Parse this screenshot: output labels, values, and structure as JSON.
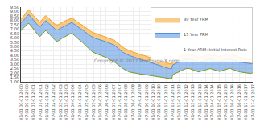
{
  "chart_data": {
    "type": "area",
    "annotations": [
      "Copyright © 2017 Mortgage-X.com"
    ],
    "grid": true,
    "legend": "upper right",
    "ylim": [
      1.0,
      9.5
    ],
    "yticks": [
      {
        "value": 1.0,
        "label": "1.00"
      },
      {
        "value": 1.5,
        "label": "1.50"
      },
      {
        "value": 2.0,
        "label": "2.00"
      },
      {
        "value": 2.5,
        "label": "2.50"
      },
      {
        "value": 3.0,
        "label": "3.00"
      },
      {
        "value": 3.5,
        "label": "3.50"
      },
      {
        "value": 4.0,
        "label": "4.00"
      },
      {
        "value": 4.5,
        "label": "4.50"
      },
      {
        "value": 5.0,
        "label": "5.00"
      },
      {
        "value": 5.5,
        "label": "5.50"
      },
      {
        "value": 6.0,
        "label": "6.00"
      },
      {
        "value": 6.5,
        "label": "6.50"
      },
      {
        "value": 7.0,
        "label": "7.00"
      },
      {
        "value": 7.5,
        "label": "7.50"
      },
      {
        "value": 8.0,
        "label": "8.00"
      },
      {
        "value": 8.5,
        "label": "8.50"
      },
      {
        "value": 9.0,
        "label": "9.00"
      },
      {
        "value": 9.5,
        "label": "9.50"
      }
    ],
    "categories": [
      "01-01\n00-01\n2000",
      null,
      null,
      null,
      null,
      null,
      "07-01\n00-01\n2000",
      null,
      null,
      null,
      null,
      null,
      "01-01\n01-01\n2001",
      null,
      null,
      null,
      null,
      null,
      null,
      "07-01\n01-01\n2001",
      null,
      null,
      null,
      null,
      null,
      "01-01\n02-01\n2002",
      null,
      null,
      null,
      null,
      null,
      "07-01\n02-01\n2002",
      null,
      null,
      null,
      null,
      null,
      null,
      "01-01\n03-01\n2003",
      null,
      null,
      null,
      null,
      null,
      "07-01\n03-01\n2003",
      null,
      null,
      null,
      null,
      null,
      "01-01\n04-01\n2004",
      null,
      null,
      null,
      null,
      null,
      null,
      "07-01\n04-01\n2004",
      null,
      null,
      null,
      null,
      null,
      "01-01\n05-01\n2005",
      null,
      null,
      null,
      null,
      null,
      null,
      "07-01\n05-01\n2005",
      null,
      null,
      null,
      null,
      null,
      "01-01\n06-01\n2006",
      null,
      null,
      null,
      null,
      null,
      "07-01\n06-01\n2006",
      null,
      null,
      null,
      null,
      null,
      null,
      "01-01\n07-01\n2007",
      null,
      null,
      null,
      null,
      null,
      "07-01\n07-01\n2007",
      null,
      null,
      null,
      null,
      null,
      "01-01\n08-01\n2008",
      null,
      null,
      null,
      null,
      null,
      null,
      "07-01\n08-01\n2008",
      null,
      null,
      null,
      null,
      null,
      "01-01\n09-01\n2009",
      null,
      null,
      null,
      null,
      null,
      null,
      "07-01\n09-01\n2009",
      null,
      null,
      null,
      null,
      null,
      "01-01\n10-01\n2010",
      null,
      null,
      null,
      null,
      null,
      "07-01\n10-01\n2010",
      null,
      null,
      null,
      null,
      null,
      null,
      "01-01\n11-01\n2011",
      null,
      null,
      null,
      null,
      null,
      "07-01\n11-01\n2011",
      null,
      null,
      null,
      null,
      null,
      "01-01\n12-01\n2012",
      null,
      null,
      null,
      null,
      null,
      null,
      "07-01\n12-01\n2012",
      null,
      null,
      null,
      null,
      null,
      "01-01\n13-01\n2013",
      null,
      null,
      null,
      null,
      null,
      null,
      "07-01\n13-01\n2013",
      null,
      null,
      null,
      null,
      null,
      "01-01\n14-01\n2014",
      null,
      null,
      null,
      null,
      null,
      "07-01\n14-01\n2014",
      null,
      null,
      null,
      null,
      null,
      null,
      "01-01\n15-01\n2015",
      null,
      null,
      null,
      null,
      null,
      "07-01\n15-01\n2015",
      null,
      null,
      null,
      null,
      null,
      "01-01\n16-01\n2016",
      null,
      null,
      null,
      null,
      null,
      null,
      "07-01\n16-01\n2016",
      null,
      null,
      null,
      null,
      null,
      "01-01\n17-01\n2017",
      null,
      null,
      null,
      null,
      null,
      null,
      "07-01\n17-01\n2017"
    ],
    "series": [
      {
        "name": "30 Year FRM",
        "color": "#f5a020",
        "values": [
          8.15,
          8.25,
          8.4,
          8.55,
          8.72,
          8.88,
          9.1,
          9.2,
          9.18,
          9.05,
          8.88,
          8.7,
          8.55,
          8.42,
          8.28,
          8.12,
          8.0,
          7.9,
          7.82,
          7.88,
          8.02,
          8.18,
          8.35,
          8.45,
          8.52,
          8.45,
          8.32,
          8.2,
          8.08,
          7.95,
          7.82,
          7.72,
          7.62,
          7.56,
          7.5,
          7.46,
          7.52,
          7.6,
          7.68,
          7.72,
          7.78,
          7.85,
          7.9,
          7.95,
          7.98,
          8.05,
          8.1,
          8.18,
          8.22,
          8.25,
          8.2,
          8.08,
          8.02,
          7.92,
          7.82,
          7.72,
          7.65,
          7.58,
          7.52,
          7.46,
          7.4,
          7.3,
          7.2,
          7.1,
          7.0,
          6.92,
          6.84,
          6.76,
          6.68,
          6.62,
          6.56,
          6.52,
          6.48,
          6.45,
          6.42,
          6.38,
          6.34,
          6.3,
          6.26,
          6.22,
          6.18,
          6.14,
          6.1,
          6.06,
          6.02,
          5.98,
          5.94,
          5.9,
          5.86,
          5.8,
          5.72,
          5.62,
          5.52,
          5.4,
          5.28,
          5.18,
          5.08,
          5.0,
          4.92,
          4.85,
          4.78,
          4.72,
          4.66,
          4.6,
          4.55,
          4.5,
          4.46,
          4.42,
          4.38,
          4.35,
          4.32,
          4.28,
          4.24,
          4.2,
          4.16,
          4.12,
          4.08,
          4.04,
          4.0,
          3.96,
          3.92,
          3.88,
          3.84,
          3.8,
          3.76,
          3.72,
          3.68,
          3.64,
          3.6,
          3.56,
          3.52,
          3.48,
          3.44,
          3.4,
          3.36,
          3.32,
          3.28,
          3.24,
          3.2,
          3.16,
          3.12,
          3.1,
          3.08,
          3.06,
          3.05,
          3.04,
          3.48,
          3.55,
          3.62,
          3.68,
          3.74,
          3.8,
          3.85,
          3.9,
          3.95,
          4.0,
          4.05,
          4.08,
          4.12,
          4.16,
          4.18,
          4.2,
          4.16,
          4.12,
          4.08,
          4.04,
          4.0,
          3.96,
          3.9,
          3.85,
          3.82,
          3.78,
          3.82,
          3.86,
          3.9,
          3.94,
          3.98,
          4.02,
          4.06,
          4.1,
          4.14,
          4.18,
          4.16,
          4.12,
          4.08,
          4.04,
          4.0,
          3.96,
          3.92,
          3.88,
          3.86,
          3.84,
          3.88,
          3.92,
          3.96,
          4.0,
          4.04,
          4.08,
          4.12,
          4.16,
          4.18,
          4.2,
          4.15,
          4.1,
          4.05,
          4.0,
          3.96,
          3.92,
          3.88,
          3.84,
          3.82,
          3.8,
          3.78,
          3.76,
          3.74,
          3.72,
          3.7,
          3.68,
          3.65,
          3.62,
          3.6,
          3.58,
          3.62,
          3.68
        ]
      },
      {
        "name": "15 Year FRM",
        "color": "#5090e0",
        "values": [
          7.7,
          7.8,
          7.95,
          8.05,
          8.2,
          8.35,
          8.55,
          8.62,
          8.6,
          8.45,
          8.3,
          8.12,
          7.98,
          7.85,
          7.72,
          7.58,
          7.45,
          7.35,
          7.28,
          7.34,
          7.48,
          7.62,
          7.78,
          7.88,
          7.95,
          7.88,
          7.75,
          7.62,
          7.5,
          7.38,
          7.25,
          7.15,
          7.05,
          6.98,
          6.92,
          6.88,
          6.95,
          7.02,
          7.1,
          7.14,
          7.2,
          7.28,
          7.34,
          7.4,
          7.44,
          7.52,
          7.58,
          7.66,
          7.7,
          7.74,
          7.68,
          7.56,
          7.5,
          7.4,
          7.3,
          7.2,
          7.12,
          7.05,
          6.98,
          6.92,
          6.86,
          6.75,
          6.65,
          6.55,
          6.45,
          6.37,
          6.29,
          6.21,
          6.14,
          6.07,
          6.01,
          5.96,
          5.92,
          5.89,
          5.86,
          5.82,
          5.78,
          5.74,
          5.7,
          5.66,
          5.62,
          5.58,
          5.54,
          5.5,
          5.46,
          5.42,
          5.38,
          5.34,
          5.3,
          5.24,
          5.16,
          5.06,
          4.95,
          4.83,
          4.72,
          4.62,
          4.52,
          4.44,
          4.36,
          4.3,
          4.23,
          4.17,
          4.11,
          4.05,
          4.0,
          3.95,
          3.91,
          3.87,
          3.83,
          3.8,
          3.76,
          3.72,
          3.68,
          3.64,
          3.6,
          3.56,
          3.52,
          3.48,
          3.44,
          3.4,
          3.36,
          3.32,
          3.28,
          3.24,
          3.2,
          3.16,
          3.12,
          3.08,
          3.04,
          3.0,
          2.96,
          2.92,
          2.88,
          2.84,
          2.8,
          2.76,
          2.72,
          2.68,
          2.64,
          2.6,
          2.56,
          2.54,
          2.52,
          2.5,
          2.49,
          2.48,
          2.92,
          2.98,
          3.04,
          3.1,
          3.16,
          3.22,
          3.28,
          3.34,
          3.4,
          3.46,
          3.5,
          3.54,
          3.58,
          3.62,
          3.64,
          3.66,
          3.62,
          3.58,
          3.54,
          3.5,
          3.46,
          3.42,
          3.36,
          3.3,
          3.27,
          3.23,
          3.26,
          3.3,
          3.34,
          3.38,
          3.42,
          3.46,
          3.5,
          3.54,
          3.58,
          3.62,
          3.6,
          3.56,
          3.52,
          3.48,
          3.44,
          3.4,
          3.36,
          3.32,
          3.3,
          3.28,
          3.32,
          3.36,
          3.4,
          3.44,
          3.48,
          3.52,
          3.56,
          3.6,
          3.62,
          3.64,
          3.58,
          3.53,
          3.48,
          3.43,
          3.38,
          3.34,
          3.3,
          3.26,
          3.24,
          3.22,
          3.2,
          3.18,
          3.16,
          3.14,
          3.12,
          3.1,
          3.08,
          3.05,
          3.03,
          3.01,
          3.05,
          3.1
        ]
      },
      {
        "name": "1 Year ARM: Initial Interest Rate",
        "color": "#7a9b20",
        "values": [
          6.8,
          6.9,
          7.05,
          7.18,
          7.3,
          7.42,
          7.58,
          7.64,
          7.62,
          7.48,
          7.32,
          7.14,
          7.0,
          6.88,
          6.74,
          6.55,
          6.38,
          6.24,
          6.15,
          6.22,
          6.36,
          6.52,
          6.65,
          6.75,
          6.82,
          6.74,
          6.62,
          6.5,
          6.35,
          6.2,
          6.07,
          5.95,
          5.84,
          5.74,
          5.65,
          5.58,
          5.66,
          5.76,
          5.84,
          5.9,
          5.98,
          6.05,
          6.12,
          6.18,
          6.22,
          6.3,
          6.36,
          6.43,
          6.48,
          6.52,
          6.44,
          6.32,
          6.24,
          6.12,
          6.0,
          5.88,
          5.78,
          5.68,
          5.58,
          5.5,
          5.42,
          5.28,
          5.15,
          5.02,
          4.9,
          4.78,
          4.68,
          4.58,
          4.48,
          4.4,
          4.32,
          4.26,
          4.22,
          4.18,
          4.14,
          4.1,
          4.06,
          4.02,
          3.98,
          3.94,
          3.88,
          3.82,
          3.76,
          3.7,
          3.64,
          3.58,
          3.52,
          3.46,
          3.4,
          3.32,
          3.24,
          3.15,
          3.06,
          2.96,
          2.86,
          2.77,
          2.68,
          2.6,
          2.52,
          2.44,
          2.37,
          2.3,
          2.24,
          2.18,
          2.13,
          2.1,
          2.07,
          2.04,
          2.02,
          2.0,
          1.98,
          1.96,
          1.94,
          1.92,
          1.9,
          1.88,
          1.86,
          1.84,
          1.83,
          1.82,
          1.8,
          1.78,
          1.76,
          1.74,
          1.72,
          1.7,
          1.68,
          1.66,
          1.64,
          1.62,
          1.6,
          1.58,
          1.56,
          1.54,
          1.52,
          1.5,
          1.48,
          1.46,
          1.44,
          1.42,
          1.4,
          1.39,
          1.38,
          1.37,
          1.36,
          1.35,
          1.8,
          1.86,
          1.92,
          1.98,
          2.04,
          2.1,
          2.16,
          2.22,
          2.28,
          2.34,
          2.38,
          2.42,
          2.46,
          2.5,
          2.52,
          2.54,
          2.5,
          2.46,
          2.42,
          2.38,
          2.34,
          2.3,
          2.24,
          2.19,
          2.16,
          2.12,
          2.16,
          2.2,
          2.24,
          2.28,
          2.32,
          2.36,
          2.4,
          2.44,
          2.48,
          2.52,
          2.5,
          2.46,
          2.42,
          2.38,
          2.34,
          2.3,
          2.26,
          2.22,
          2.2,
          2.18,
          2.22,
          2.26,
          2.3,
          2.34,
          2.38,
          2.42,
          2.46,
          2.5,
          2.52,
          2.54,
          2.48,
          2.43,
          2.38,
          2.33,
          2.28,
          2.24,
          2.2,
          2.16,
          2.14,
          2.12,
          2.1,
          2.08,
          2.06,
          2.04,
          2.02,
          2.0,
          1.98,
          1.96,
          1.95,
          1.94,
          1.98,
          2.04
        ]
      }
    ]
  }
}
